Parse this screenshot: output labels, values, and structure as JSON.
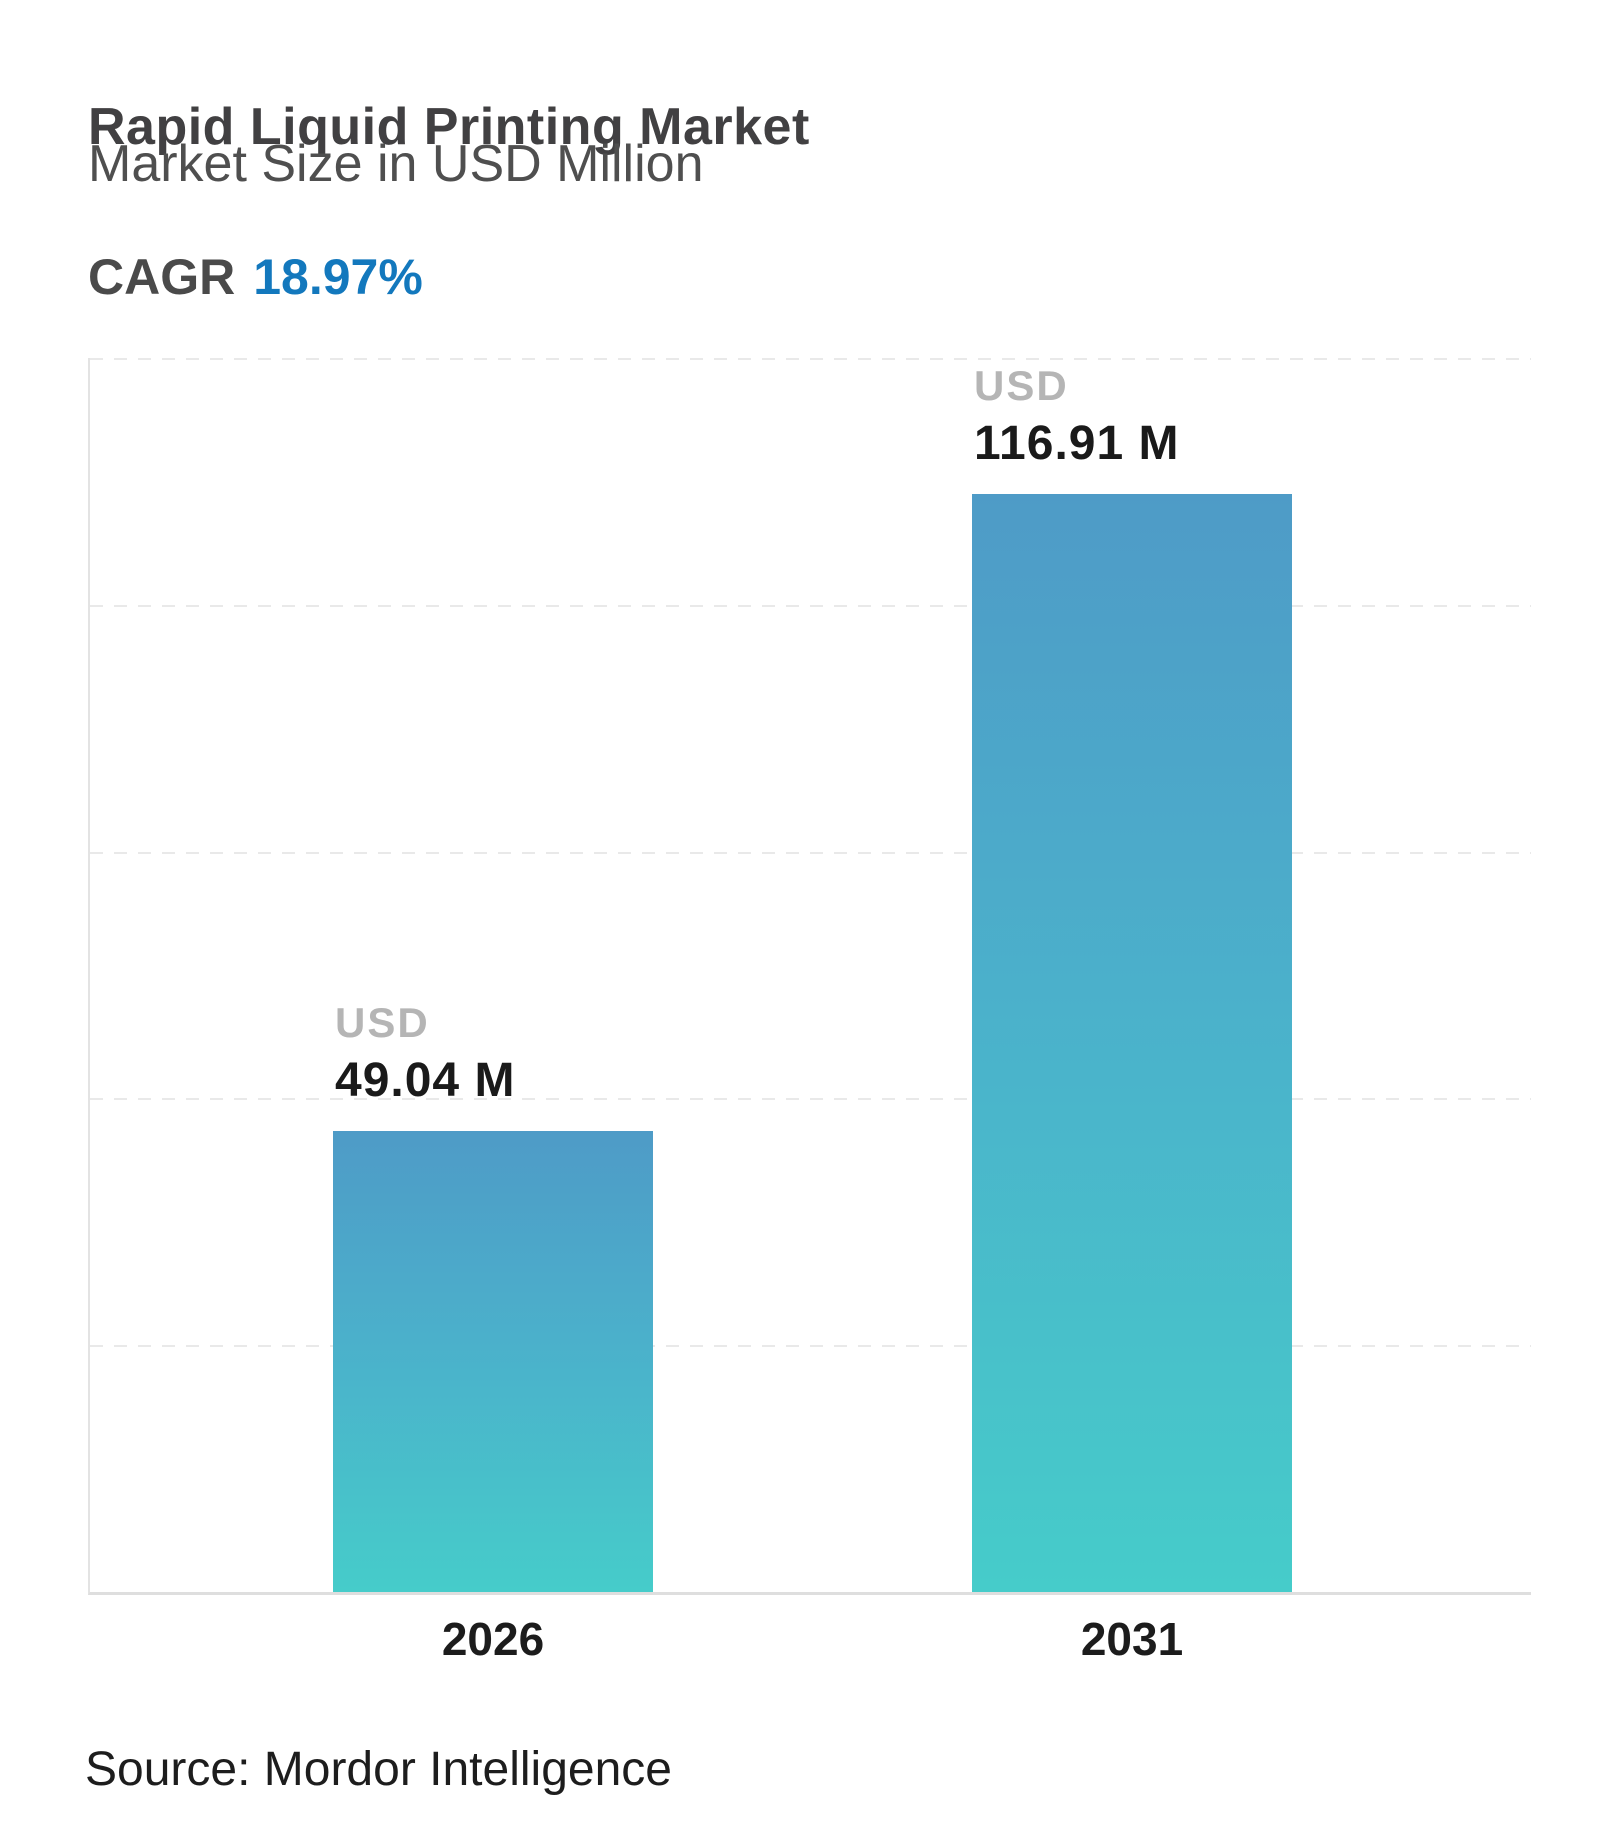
{
  "header": {
    "title": "Rapid Liquid Printing Market",
    "subtitle": "Market Size in USD Million",
    "cagr_label": "CAGR",
    "cagr_value": "18.97%"
  },
  "chart_data": {
    "type": "bar",
    "title": "Rapid Liquid Printing Market",
    "subtitle": "Market Size in USD Million",
    "cagr_pct": 18.97,
    "categories": [
      "2026",
      "2031"
    ],
    "values": [
      49.04,
      116.91
    ],
    "unit_prefix": "USD",
    "value_labels": [
      "49.04 M",
      "116.91 M"
    ],
    "ylabel": "",
    "xlabel": "",
    "ylim": [
      0,
      131.4
    ],
    "grid": "horizontal-dashed",
    "legend_position": "none",
    "bar_gradient_top": "#4E9BC7",
    "bar_gradient_bottom": "#46CCCA"
  },
  "footer": {
    "source": "Source: Mordor Intelligence"
  },
  "colors": {
    "accent_blue": "#1378BD",
    "title_text": "#414042",
    "subtitle_text": "#4F4F4F",
    "usd_label": "#B5B5B5",
    "value_label": "#1A1A1A",
    "axis_label": "#1C1C1C",
    "gridline": "#E9E9E9",
    "axis_line": "#DEDEDE"
  }
}
